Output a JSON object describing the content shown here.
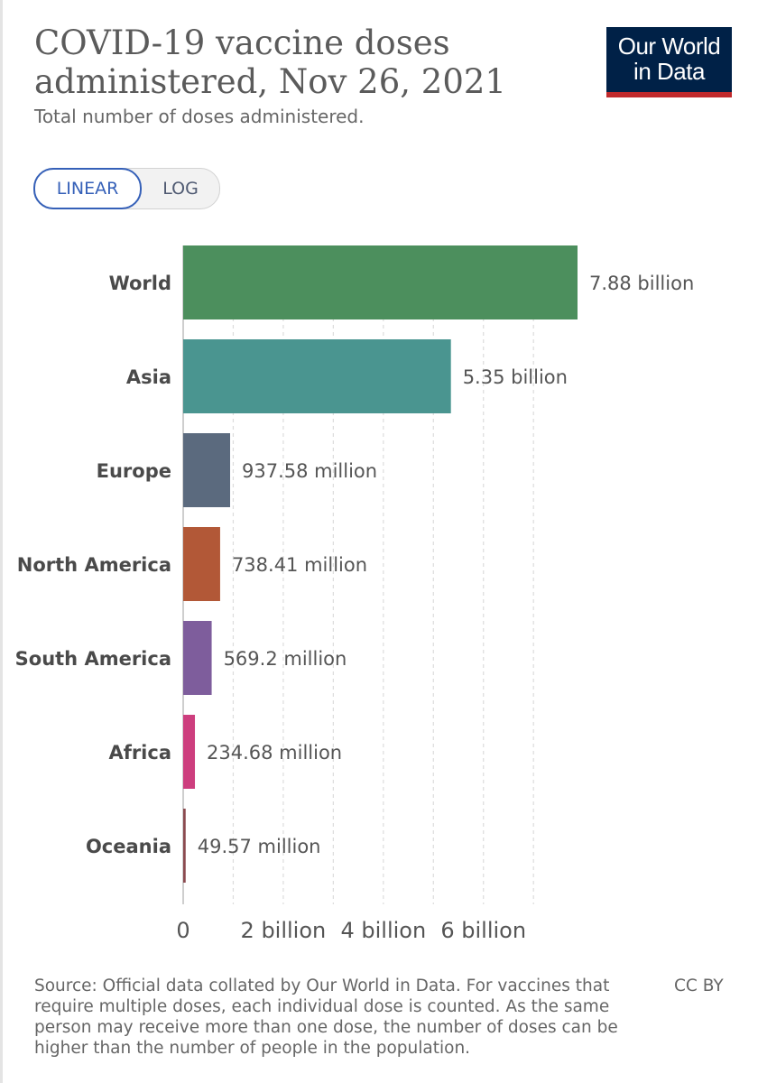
{
  "header": {
    "title": "COVID-19 vaccine doses administered, Nov 26, 2021",
    "subtitle": "Total number of doses administered.",
    "logo_line1": "Our World",
    "logo_line2": "in Data"
  },
  "scale_toggle": {
    "linear_label": "LINEAR",
    "log_label": "LOG",
    "selected": "LINEAR"
  },
  "chart_data": {
    "type": "bar",
    "orientation": "horizontal",
    "title": "COVID-19 vaccine doses administered, Nov 26, 2021",
    "subtitle": "Total number of doses administered.",
    "xlabel": "",
    "ylabel": "",
    "xlim": [
      0,
      7880000000
    ],
    "grid": true,
    "categories": [
      "World",
      "Asia",
      "Europe",
      "North America",
      "South America",
      "Africa",
      "Oceania"
    ],
    "values": [
      7880000000,
      5350000000,
      937580000,
      738410000,
      569200000,
      234680000,
      49570000
    ],
    "value_labels": [
      "7.88 billion",
      "5.35 billion",
      "937.58 million",
      "738.41 million",
      "569.2 million",
      "234.68 million",
      "49.57 million"
    ],
    "colors": [
      "#4c8f5d",
      "#4a9590",
      "#5b6a7e",
      "#b25837",
      "#7e5d9c",
      "#cd3e7e",
      "#8b4a4f"
    ],
    "gridline_values": [
      0,
      1000000000,
      2000000000,
      3000000000,
      4000000000,
      5000000000,
      6000000000,
      7000000000
    ],
    "ticks": [
      {
        "value": 0,
        "label": "0"
      },
      {
        "value": 2000000000,
        "label": "2 billion"
      },
      {
        "value": 4000000000,
        "label": "4 billion"
      },
      {
        "value": 6000000000,
        "label": "6 billion"
      }
    ]
  },
  "footer": {
    "source": "Source: Official data collated by Our World in Data. For vaccines that require multiple doses, each individual dose is counted. As the same person may receive more than one dose, the number of doses can be higher than the number of people in the population.",
    "license": "CC BY"
  }
}
